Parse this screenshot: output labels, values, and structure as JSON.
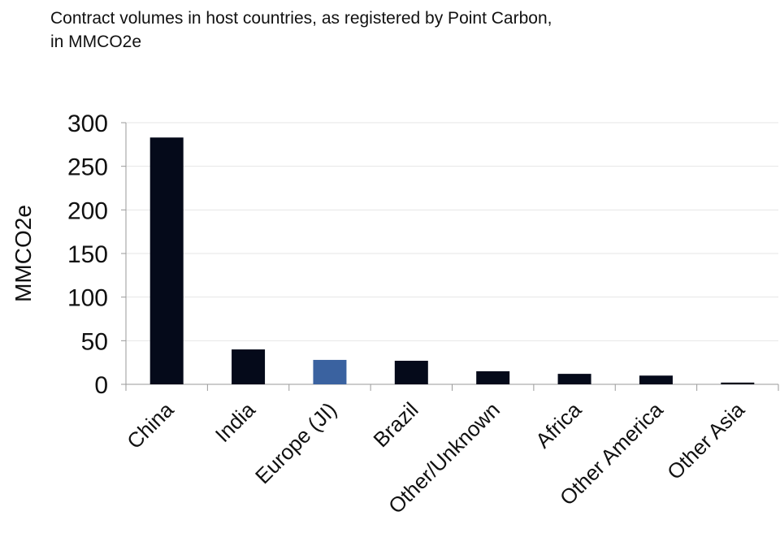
{
  "chart_data": {
    "type": "bar",
    "title": "Contract volumes in host countries, as registered by Point Carbon,",
    "subtitle": "in MMCO2e",
    "xlabel": "",
    "ylabel": "MMCO2e",
    "ylim": [
      0,
      300
    ],
    "yticks": [
      "0",
      "50",
      "100",
      "150",
      "200",
      "250",
      "300"
    ],
    "grid": true,
    "categories": [
      "China",
      "India",
      "Europe (JI)",
      "Brazil",
      "Other/Unknown",
      "Africa",
      "Other America",
      "Other Asia"
    ],
    "values": [
      283,
      40,
      28,
      27,
      15,
      12,
      10,
      2
    ],
    "bar_colors": [
      "#050a1a",
      "#050a1a",
      "#3a62a0",
      "#050a1a",
      "#050a1a",
      "#050a1a",
      "#050a1a",
      "#050a1a"
    ]
  }
}
